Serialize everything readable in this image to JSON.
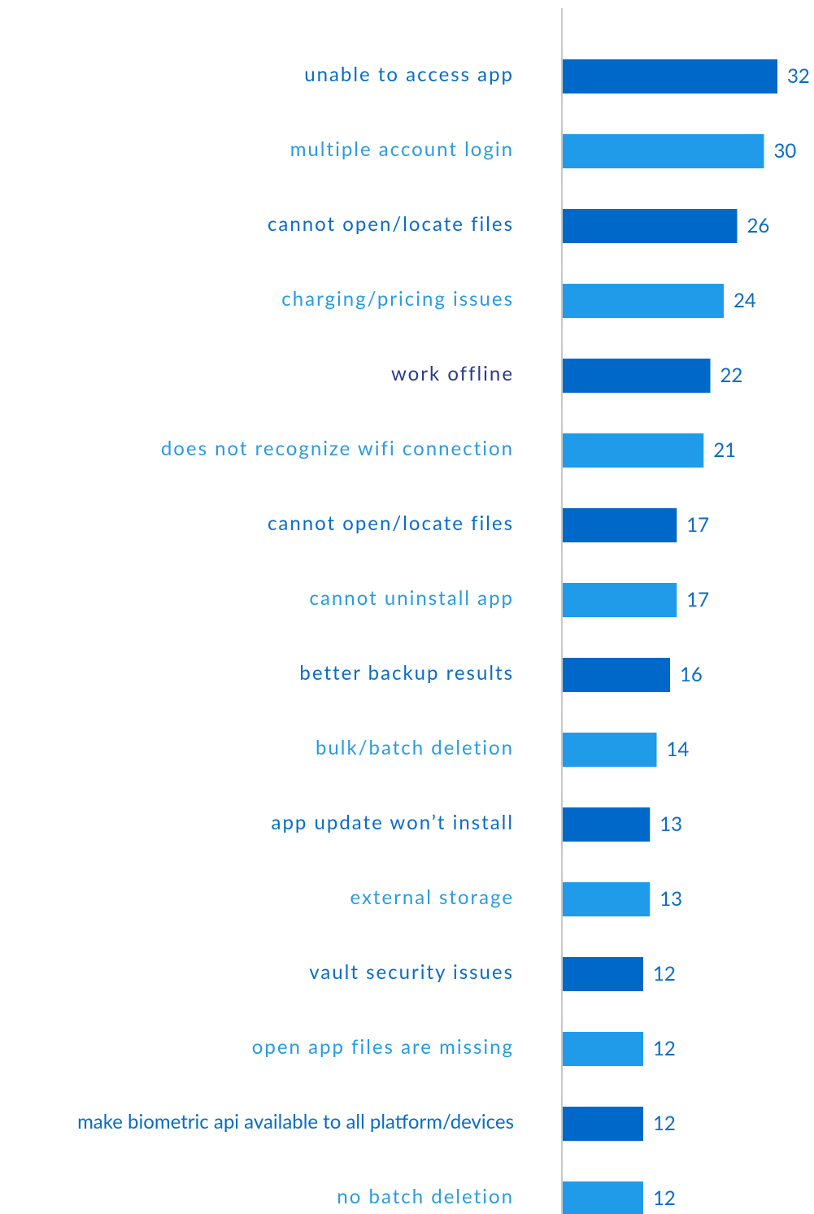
{
  "chart_data": {
    "type": "barh",
    "categories": [
      "unable to access app",
      "multiple account login",
      "cannot open/locate files",
      "charging/pricing issues",
      "work offline",
      "does not recognize wifi connection",
      "cannot open/locate files",
      "cannot uninstall app",
      "better backup results",
      "bulk/batch deletion",
      "app update won’t install",
      "external storage",
      "vault security issues",
      "open app files are missing",
      "make biometric api available to all platform/devices",
      "no batch deletion"
    ],
    "values": [
      32,
      30,
      26,
      24,
      22,
      21,
      17,
      17,
      16,
      14,
      13,
      13,
      12,
      12,
      12,
      12
    ],
    "colors": [
      "#0068c9",
      "#1f9bea",
      "#0068c9",
      "#1f9bea",
      "#0068c9",
      "#1f9bea",
      "#0068c9",
      "#1f9bea",
      "#0068c9",
      "#1f9bea",
      "#0068c9",
      "#1f9bea",
      "#0068c9",
      "#1f9bea",
      "#0068c9",
      "#1f9bea"
    ],
    "label_colors": [
      "#0a6cc6",
      "#2a9be0",
      "#0a6cc6",
      "#2a9be0",
      "#2b3a8c",
      "#2a9be0",
      "#0a6cc6",
      "#2a9be0",
      "#0a6cc6",
      "#2a9be0",
      "#0a6cc6",
      "#2a9be0",
      "#0a6cc6",
      "#2a9be0",
      "#0a6cc6",
      "#2a9be0"
    ],
    "value_label_color": "#0a6cc6",
    "axis_color": "#c8c8c8"
  }
}
